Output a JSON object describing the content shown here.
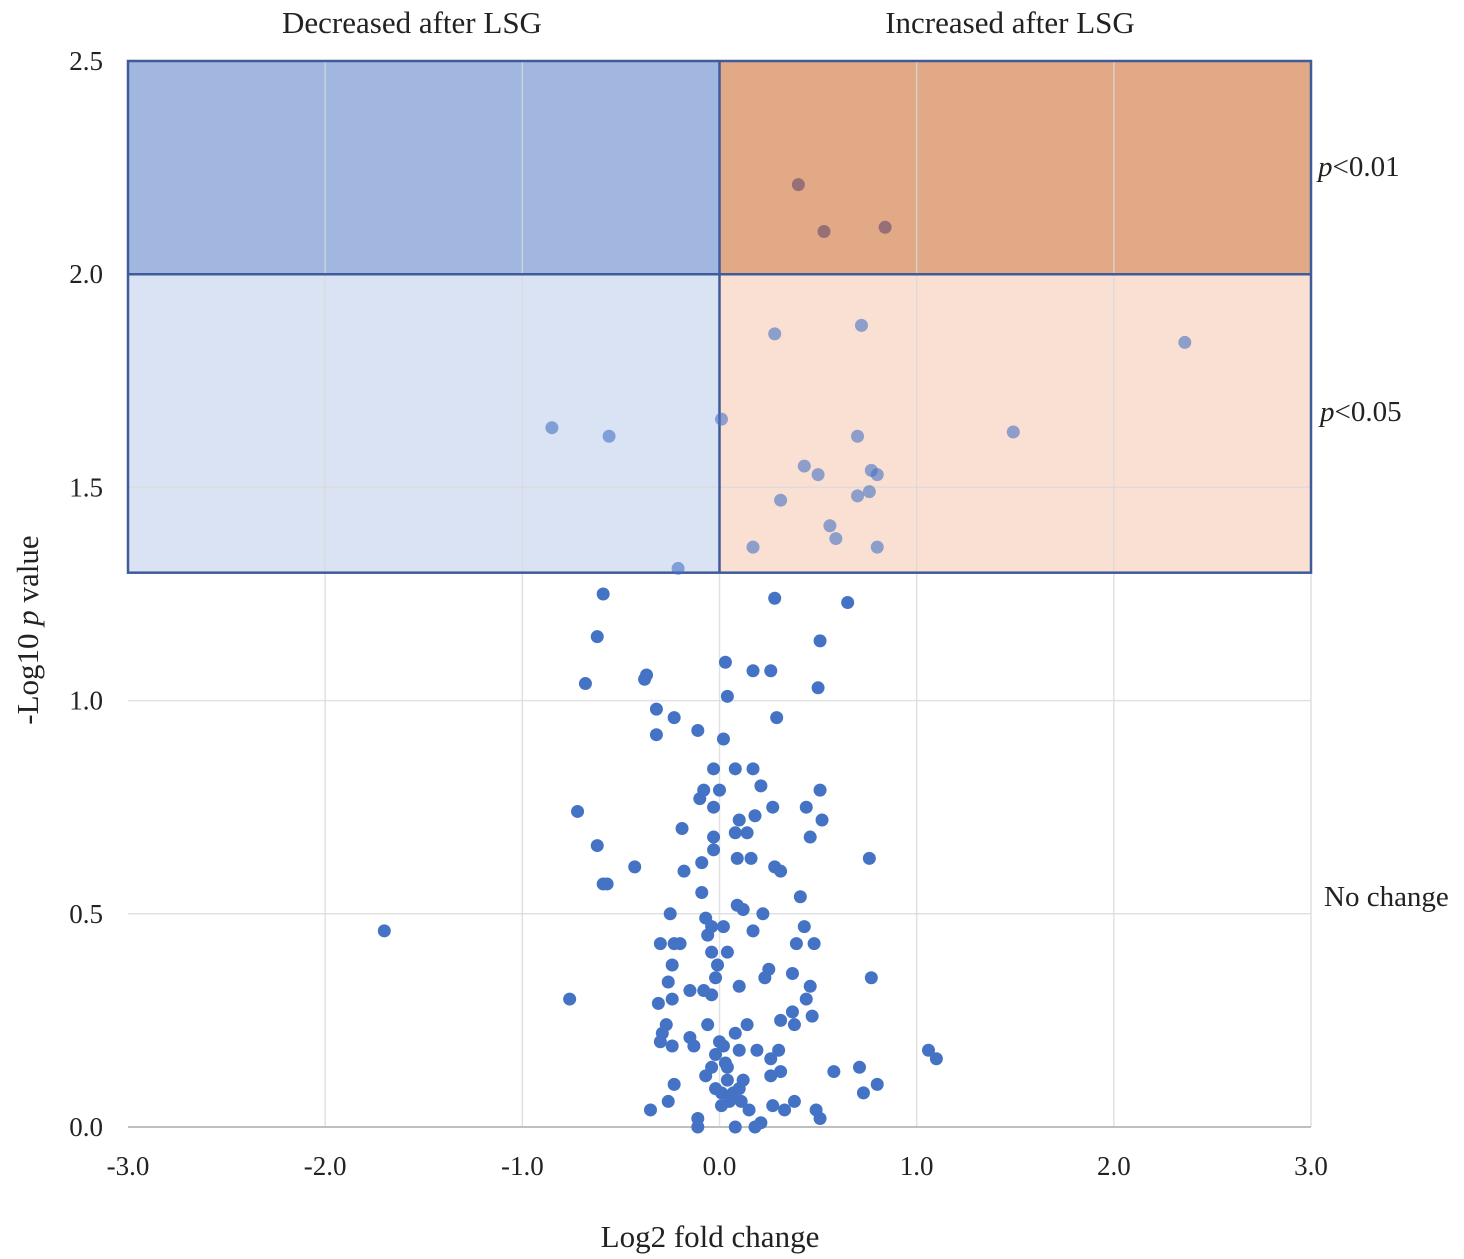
{
  "colors": {
    "decreased_sig01": "#a1b7e0",
    "decreased_sig05": "#dae3f3",
    "increased_sig01": "#e1a985",
    "increased_sig05": "#fae0d2",
    "region_border": "#3f5b9a",
    "point": "#4472c4",
    "grid": "#d9d9d9"
  },
  "chart_data": {
    "type": "scatter",
    "title": "",
    "xlabel": "Log2 fold change",
    "ylabel_prefix": "-Log10 ",
    "ylabel_italic": "p",
    "ylabel_suffix": " value",
    "xlim": [
      -3.0,
      3.0
    ],
    "ylim": [
      0.0,
      2.5
    ],
    "x_ticks": [
      -3.0,
      -2.0,
      -1.0,
      0.0,
      1.0,
      2.0,
      3.0
    ],
    "x_tick_labels": [
      "-3.0",
      "-2.0",
      "-1.0",
      "0.0",
      "1.0",
      "2.0",
      "3.0"
    ],
    "y_ticks": [
      0.0,
      0.5,
      1.0,
      1.5,
      2.0,
      2.5
    ],
    "y_tick_labels": [
      "0.0",
      "0.5",
      "1.0",
      "1.5",
      "2.0",
      "2.5"
    ],
    "grid": true,
    "region_labels": {
      "decreased": "Decreased after LSG",
      "increased": "Increased after LSG",
      "p01_italic": "p",
      "p01_rest": "<0.01",
      "p05_italic": "p",
      "p05_rest": "<0.05",
      "no_change": "No change"
    },
    "thresholds": {
      "p05": 1.3,
      "p01": 2.0
    },
    "points": [
      [
        0.4,
        2.21
      ],
      [
        0.53,
        2.1
      ],
      [
        0.84,
        2.11
      ],
      [
        0.28,
        1.86
      ],
      [
        0.72,
        1.88
      ],
      [
        2.36,
        1.84
      ],
      [
        -0.85,
        1.64
      ],
      [
        -0.56,
        1.62
      ],
      [
        0.01,
        1.66
      ],
      [
        1.49,
        1.63
      ],
      [
        0.7,
        1.62
      ],
      [
        0.43,
        1.55
      ],
      [
        0.5,
        1.53
      ],
      [
        0.77,
        1.54
      ],
      [
        0.8,
        1.53
      ],
      [
        0.7,
        1.48
      ],
      [
        0.76,
        1.49
      ],
      [
        0.31,
        1.47
      ],
      [
        0.56,
        1.41
      ],
      [
        0.59,
        1.38
      ],
      [
        0.17,
        1.36
      ],
      [
        0.8,
        1.36
      ],
      [
        -0.21,
        1.31
      ],
      [
        -0.59,
        1.25
      ],
      [
        0.28,
        1.24
      ],
      [
        0.65,
        1.23
      ],
      [
        -0.62,
        1.15
      ],
      [
        0.51,
        1.14
      ],
      [
        0.03,
        1.09
      ],
      [
        0.17,
        1.07
      ],
      [
        0.26,
        1.07
      ],
      [
        -0.37,
        1.06
      ],
      [
        -0.38,
        1.05
      ],
      [
        -0.68,
        1.04
      ],
      [
        0.5,
        1.03
      ],
      [
        0.04,
        1.01
      ],
      [
        -0.32,
        0.98
      ],
      [
        -0.23,
        0.96
      ],
      [
        0.29,
        0.96
      ],
      [
        -0.11,
        0.93
      ],
      [
        -0.32,
        0.92
      ],
      [
        0.02,
        0.91
      ],
      [
        -0.03,
        0.84
      ],
      [
        0.08,
        0.84
      ],
      [
        0.17,
        0.84
      ],
      [
        -0.08,
        0.79
      ],
      [
        0.0,
        0.79
      ],
      [
        0.21,
        0.8
      ],
      [
        0.51,
        0.79
      ],
      [
        -0.1,
        0.77
      ],
      [
        -0.72,
        0.74
      ],
      [
        -0.03,
        0.75
      ],
      [
        0.27,
        0.75
      ],
      [
        0.44,
        0.75
      ],
      [
        0.1,
        0.72
      ],
      [
        0.18,
        0.73
      ],
      [
        0.52,
        0.72
      ],
      [
        -0.19,
        0.7
      ],
      [
        -0.03,
        0.68
      ],
      [
        0.08,
        0.69
      ],
      [
        0.14,
        0.69
      ],
      [
        0.46,
        0.68
      ],
      [
        -0.62,
        0.66
      ],
      [
        -0.03,
        0.65
      ],
      [
        0.09,
        0.63
      ],
      [
        0.16,
        0.63
      ],
      [
        0.76,
        0.63
      ],
      [
        -0.09,
        0.62
      ],
      [
        0.28,
        0.61
      ],
      [
        0.31,
        0.6
      ],
      [
        -0.43,
        0.61
      ],
      [
        -0.18,
        0.6
      ],
      [
        -0.59,
        0.57
      ],
      [
        -0.57,
        0.57
      ],
      [
        -0.09,
        0.55
      ],
      [
        0.41,
        0.54
      ],
      [
        0.09,
        0.52
      ],
      [
        0.12,
        0.51
      ],
      [
        -0.25,
        0.5
      ],
      [
        0.22,
        0.5
      ],
      [
        -0.07,
        0.49
      ],
      [
        -0.04,
        0.47
      ],
      [
        0.02,
        0.47
      ],
      [
        0.43,
        0.47
      ],
      [
        0.17,
        0.46
      ],
      [
        -1.7,
        0.46
      ],
      [
        -0.06,
        0.45
      ],
      [
        -0.3,
        0.43
      ],
      [
        -0.23,
        0.43
      ],
      [
        -0.2,
        0.43
      ],
      [
        0.39,
        0.43
      ],
      [
        0.48,
        0.43
      ],
      [
        -0.04,
        0.41
      ],
      [
        0.04,
        0.41
      ],
      [
        -0.01,
        0.38
      ],
      [
        -0.24,
        0.38
      ],
      [
        0.25,
        0.37
      ],
      [
        0.37,
        0.36
      ],
      [
        -0.02,
        0.35
      ],
      [
        0.23,
        0.35
      ],
      [
        0.77,
        0.35
      ],
      [
        -0.26,
        0.34
      ],
      [
        0.1,
        0.33
      ],
      [
        0.46,
        0.33
      ],
      [
        -0.15,
        0.32
      ],
      [
        -0.08,
        0.32
      ],
      [
        -0.04,
        0.31
      ],
      [
        -0.24,
        0.3
      ],
      [
        -0.76,
        0.3
      ],
      [
        -0.31,
        0.29
      ],
      [
        0.44,
        0.3
      ],
      [
        0.37,
        0.27
      ],
      [
        0.47,
        0.26
      ],
      [
        0.31,
        0.25
      ],
      [
        0.38,
        0.24
      ],
      [
        -0.06,
        0.24
      ],
      [
        -0.27,
        0.24
      ],
      [
        0.14,
        0.24
      ],
      [
        -0.29,
        0.22
      ],
      [
        -0.15,
        0.21
      ],
      [
        0.08,
        0.22
      ],
      [
        -0.3,
        0.2
      ],
      [
        0.0,
        0.2
      ],
      [
        -0.24,
        0.19
      ],
      [
        0.02,
        0.19
      ],
      [
        -0.13,
        0.19
      ],
      [
        0.1,
        0.18
      ],
      [
        0.19,
        0.18
      ],
      [
        0.3,
        0.18
      ],
      [
        1.06,
        0.18
      ],
      [
        -0.02,
        0.17
      ],
      [
        0.26,
        0.16
      ],
      [
        1.1,
        0.16
      ],
      [
        0.03,
        0.15
      ],
      [
        0.04,
        0.14
      ],
      [
        -0.04,
        0.14
      ],
      [
        0.71,
        0.14
      ],
      [
        0.58,
        0.13
      ],
      [
        0.31,
        0.13
      ],
      [
        -0.07,
        0.12
      ],
      [
        0.26,
        0.12
      ],
      [
        0.12,
        0.11
      ],
      [
        0.04,
        0.11
      ],
      [
        -0.23,
        0.1
      ],
      [
        0.8,
        0.1
      ],
      [
        0.1,
        0.09
      ],
      [
        -0.02,
        0.09
      ],
      [
        0.07,
        0.08
      ],
      [
        0.01,
        0.08
      ],
      [
        0.73,
        0.08
      ],
      [
        0.11,
        0.06
      ],
      [
        -0.26,
        0.06
      ],
      [
        0.38,
        0.06
      ],
      [
        0.05,
        0.06
      ],
      [
        0.01,
        0.05
      ],
      [
        0.27,
        0.05
      ],
      [
        -0.35,
        0.04
      ],
      [
        0.15,
        0.04
      ],
      [
        0.33,
        0.04
      ],
      [
        -0.11,
        0.02
      ],
      [
        0.49,
        0.04
      ],
      [
        0.51,
        0.02
      ],
      [
        -0.11,
        0.0
      ],
      [
        0.08,
        0.0
      ],
      [
        0.18,
        0.0
      ],
      [
        0.21,
        0.01
      ]
    ]
  }
}
